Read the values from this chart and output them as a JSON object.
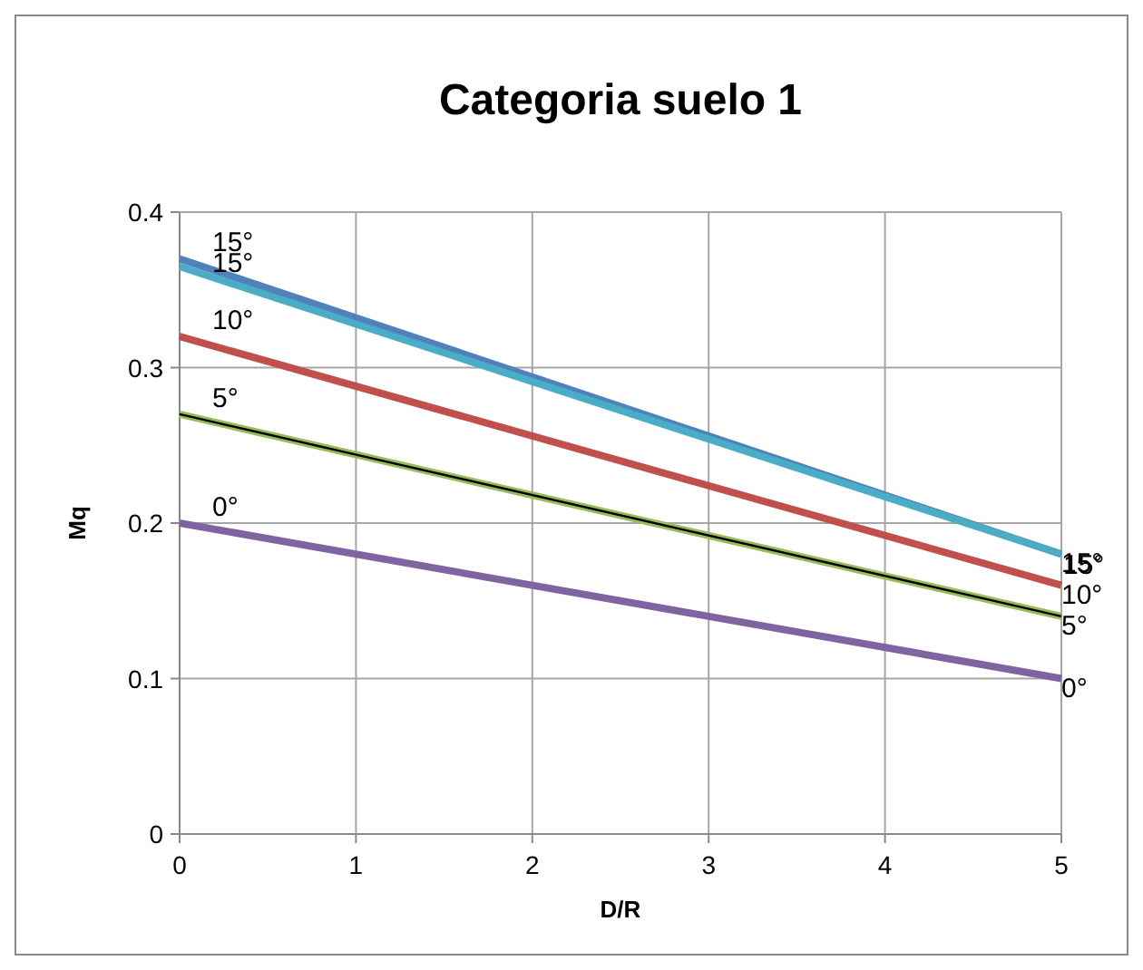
{
  "chart_data": {
    "type": "line",
    "title": "Categoria suelo 1",
    "xlabel": "D/R",
    "ylabel": "Mq",
    "x": [
      0,
      5
    ],
    "series": [
      {
        "name": "0°",
        "color": "#8064a2",
        "values": [
          0.2,
          0.1
        ]
      },
      {
        "name": "5°",
        "color": "#9bbb59",
        "values": [
          0.27,
          0.14
        ]
      },
      {
        "color": "#000000",
        "values": [
          0.27,
          0.14
        ]
      },
      {
        "name": "10°",
        "color": "#c0504d",
        "values": [
          0.32,
          0.16
        ]
      },
      {
        "name": "15°",
        "color": "#4f81bd",
        "values": [
          0.37,
          0.18
        ]
      },
      {
        "name": "15°",
        "color": "#4bacc6",
        "values": [
          0.365,
          0.18
        ]
      }
    ],
    "xlim": [
      0,
      5
    ],
    "xticks": [
      0,
      1,
      2,
      3,
      4,
      5
    ],
    "ylim": [
      0,
      0.4
    ],
    "yticks": [
      0,
      0.1,
      0.2,
      0.3,
      0.4
    ],
    "grid": true,
    "legend": false,
    "marker": "none",
    "line_style": "solid"
  }
}
